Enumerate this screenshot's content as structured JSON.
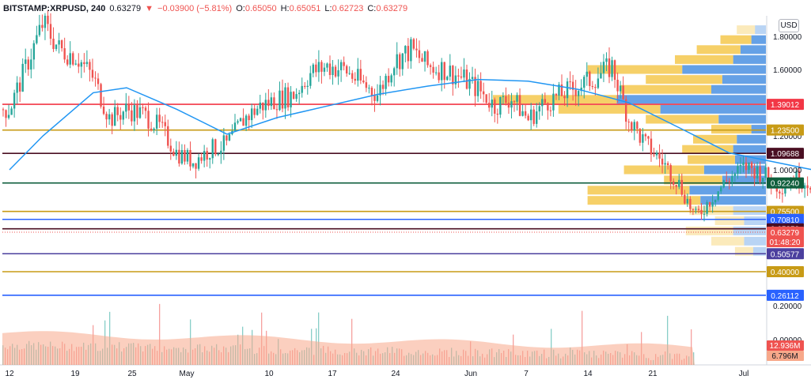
{
  "header": {
    "symbol": "BITSTAMP:XRPUSD, 240",
    "price": "0.63279",
    "change": "−0.03900 (−5.81%)",
    "o_label": "O:",
    "o_value": "0.65050",
    "h_label": "H:",
    "h_value": "0.65051",
    "l_label": "L:",
    "l_value": "0.62723",
    "c_label": "C:",
    "c_value": "0.63279"
  },
  "currency_button": "USD",
  "chart_data": {
    "type": "candlestick",
    "title": "",
    "x_tick_labels": [
      "12",
      "19",
      "25",
      "May",
      "10",
      "17",
      "24",
      "Jun",
      "7",
      "14",
      "21",
      "Jul"
    ],
    "y_tick_labels": [
      "1.80000",
      "1.60000",
      "1.20000",
      "1.00000",
      "0.20000",
      "0.00000"
    ],
    "y_ticks": [
      1.8,
      1.6,
      1.2,
      1.0,
      0.2,
      0.0
    ],
    "ylim": [
      0.0,
      1.9
    ],
    "price_levels": [
      {
        "label": "1.39012",
        "value": 1.39012,
        "color": "#f23645"
      },
      {
        "label": "1.23500",
        "value": 1.235,
        "color": "#c89b16"
      },
      {
        "label": "1.09688",
        "value": 1.09688,
        "color": "#4a0f22"
      },
      {
        "label": "0.92240",
        "value": 0.9224,
        "color": "#0f5e3c"
      },
      {
        "label": "0.75500",
        "value": 0.755,
        "color": "#c89b16"
      },
      {
        "label": "0.70810",
        "value": 0.7081,
        "color": "#2962ff"
      },
      {
        "label": "0.65258",
        "value": 0.65258,
        "color": "#4a0f22"
      },
      {
        "label": "0.50577",
        "value": 0.50577,
        "color": "#4b3f9e"
      },
      {
        "label": "0.40000",
        "value": 0.4,
        "color": "#c89b16"
      },
      {
        "label": "0.26112",
        "value": 0.26112,
        "color": "#2962ff"
      }
    ],
    "current_price": {
      "label": "0.63279",
      "countdown": "01:48:20",
      "value": 0.63279,
      "color": "#ef5350"
    },
    "volume_labels": [
      {
        "label": "12.936M",
        "color": "#ef5350"
      },
      {
        "label": "6.796M",
        "color": "#f7a88a"
      }
    ],
    "price_path": [
      {
        "date": "Apr 12",
        "value": 1.36
      },
      {
        "date": "Apr 13",
        "value": 1.62
      },
      {
        "date": "Apr 14",
        "value": 1.88
      },
      {
        "date": "Apr 15",
        "value": 1.72
      },
      {
        "date": "Apr 16",
        "value": 1.68
      },
      {
        "date": "Apr 17",
        "value": 1.55
      },
      {
        "date": "Apr 18",
        "value": 1.3
      },
      {
        "date": "Apr 19",
        "value": 1.36
      },
      {
        "date": "Apr 20",
        "value": 1.33
      },
      {
        "date": "Apr 21",
        "value": 1.25
      },
      {
        "date": "Apr 22",
        "value": 1.1
      },
      {
        "date": "Apr 23",
        "value": 1.05
      },
      {
        "date": "Apr 24",
        "value": 1.12
      },
      {
        "date": "Apr 25",
        "value": 1.15
      },
      {
        "date": "Apr 26",
        "value": 1.3
      },
      {
        "date": "Apr 27",
        "value": 1.38
      },
      {
        "date": "Apr 28",
        "value": 1.42
      },
      {
        "date": "Apr 29",
        "value": 1.45
      },
      {
        "date": "Apr 30",
        "value": 1.58
      },
      {
        "date": "May 1",
        "value": 1.62
      },
      {
        "date": "May 2",
        "value": 1.6
      },
      {
        "date": "May 3",
        "value": 1.52
      },
      {
        "date": "May 4",
        "value": 1.45
      },
      {
        "date": "May 5",
        "value": 1.65
      },
      {
        "date": "May 6",
        "value": 1.72
      },
      {
        "date": "May 7",
        "value": 1.62
      },
      {
        "date": "May 8",
        "value": 1.6
      },
      {
        "date": "May 9",
        "value": 1.55
      },
      {
        "date": "May 10",
        "value": 1.48
      },
      {
        "date": "May 11",
        "value": 1.38
      },
      {
        "date": "May 12",
        "value": 1.43
      },
      {
        "date": "May 13",
        "value": 1.3
      },
      {
        "date": "May 14",
        "value": 1.4
      },
      {
        "date": "May 15",
        "value": 1.45
      },
      {
        "date": "May 16",
        "value": 1.5
      },
      {
        "date": "May 17",
        "value": 1.55
      },
      {
        "date": "May 18",
        "value": 1.62
      },
      {
        "date": "May 19",
        "value": 1.3
      },
      {
        "date": "May 20",
        "value": 1.15
      },
      {
        "date": "May 21",
        "value": 1.05
      },
      {
        "date": "May 22",
        "value": 0.92
      },
      {
        "date": "May 23",
        "value": 0.72
      },
      {
        "date": "May 24",
        "value": 0.84
      },
      {
        "date": "May 25",
        "value": 0.95
      },
      {
        "date": "May 26",
        "value": 1.02
      },
      {
        "date": "May 27",
        "value": 0.98
      },
      {
        "date": "May 28",
        "value": 0.9
      },
      {
        "date": "May 29",
        "value": 0.95
      },
      {
        "date": "May 30",
        "value": 0.92
      },
      {
        "date": "May 31",
        "value": 0.98
      },
      {
        "date": "Jun 1",
        "value": 1.02
      },
      {
        "date": "Jun 2",
        "value": 1.04
      },
      {
        "date": "Jun 3",
        "value": 1.02
      },
      {
        "date": "Jun 4",
        "value": 0.96
      },
      {
        "date": "Jun 5",
        "value": 0.94
      },
      {
        "date": "Jun 6",
        "value": 0.93
      },
      {
        "date": "Jun 7",
        "value": 0.91
      },
      {
        "date": "Jun 8",
        "value": 0.85
      },
      {
        "date": "Jun 9",
        "value": 0.9
      },
      {
        "date": "Jun 10",
        "value": 0.88
      },
      {
        "date": "Jun 11",
        "value": 0.86
      },
      {
        "date": "Jun 12",
        "value": 0.87
      },
      {
        "date": "Jun 13",
        "value": 0.89
      },
      {
        "date": "Jun 14",
        "value": 0.9
      },
      {
        "date": "Jun 15",
        "value": 0.87
      },
      {
        "date": "Jun 16",
        "value": 0.84
      },
      {
        "date": "Jun 17",
        "value": 0.83
      },
      {
        "date": "Jun 18",
        "value": 0.78
      },
      {
        "date": "Jun 19",
        "value": 0.74
      },
      {
        "date": "Jun 20",
        "value": 0.67
      },
      {
        "date": "Jun 21",
        "value": 0.58
      },
      {
        "date": "Jun 22",
        "value": 0.52
      },
      {
        "date": "Jun 23",
        "value": 0.6
      },
      {
        "date": "Jun 24",
        "value": 0.64
      },
      {
        "date": "Jun 25",
        "value": 0.63279
      }
    ],
    "moving_average": [
      {
        "date": "Apr 12",
        "value": 1.0
      },
      {
        "date": "Apr 14",
        "value": 1.2
      },
      {
        "date": "Apr 17",
        "value": 1.46
      },
      {
        "date": "Apr 19",
        "value": 1.49
      },
      {
        "date": "Apr 22",
        "value": 1.36
      },
      {
        "date": "Apr 25",
        "value": 1.21
      },
      {
        "date": "Apr 28",
        "value": 1.31
      },
      {
        "date": "May 1",
        "value": 1.38
      },
      {
        "date": "May 4",
        "value": 1.45
      },
      {
        "date": "May 7",
        "value": 1.5
      },
      {
        "date": "May 10",
        "value": 1.54
      },
      {
        "date": "May 13",
        "value": 1.53
      },
      {
        "date": "May 16",
        "value": 1.48
      },
      {
        "date": "May 19",
        "value": 1.4
      },
      {
        "date": "May 22",
        "value": 1.25
      },
      {
        "date": "May 25",
        "value": 1.1
      },
      {
        "date": "May 28",
        "value": 1.04
      },
      {
        "date": "May 31",
        "value": 0.98
      },
      {
        "date": "Jun 3",
        "value": 0.97
      },
      {
        "date": "Jun 6",
        "value": 0.94
      },
      {
        "date": "Jun 9",
        "value": 0.92
      },
      {
        "date": "Jun 12",
        "value": 0.9
      },
      {
        "date": "Jun 15",
        "value": 0.88
      },
      {
        "date": "Jun 18",
        "value": 0.85
      },
      {
        "date": "Jun 21",
        "value": 0.78
      },
      {
        "date": "Jun 24",
        "value": 0.7
      }
    ],
    "volume_profile": [
      {
        "price": 1.84,
        "buy": 0.1,
        "sell": 0.06
      },
      {
        "price": 1.78,
        "buy": 0.17,
        "sell": 0.08
      },
      {
        "price": 1.72,
        "buy": 0.24,
        "sell": 0.14
      },
      {
        "price": 1.66,
        "buy": 0.32,
        "sell": 0.18
      },
      {
        "price": 1.6,
        "buy": 0.52,
        "sell": 0.46
      },
      {
        "price": 1.54,
        "buy": 0.42,
        "sell": 0.24
      },
      {
        "price": 1.48,
        "buy": 0.5,
        "sell": 0.3
      },
      {
        "price": 1.42,
        "buy": 0.68,
        "sell": 0.82
      },
      {
        "price": 1.36,
        "buy": 0.56,
        "sell": 0.58
      },
      {
        "price": 1.3,
        "buy": 0.4,
        "sell": 0.26
      },
      {
        "price": 1.24,
        "buy": 0.22,
        "sell": 0.08
      },
      {
        "price": 1.18,
        "buy": 0.24,
        "sell": 0.16
      },
      {
        "price": 1.12,
        "buy": 0.28,
        "sell": 0.18
      },
      {
        "price": 1.06,
        "buy": 0.26,
        "sell": 0.17
      },
      {
        "price": 1.0,
        "buy": 0.44,
        "sell": 0.34
      },
      {
        "price": 0.94,
        "buy": 0.32,
        "sell": 0.24
      },
      {
        "price": 0.88,
        "buy": 0.56,
        "sell": 0.42
      },
      {
        "price": 0.82,
        "buy": 0.62,
        "sell": 0.36
      },
      {
        "price": 0.76,
        "buy": 0.24,
        "sell": 0.18
      },
      {
        "price": 0.7,
        "buy": 0.16,
        "sell": 0.12
      },
      {
        "price": 0.64,
        "buy": 0.26,
        "sell": 0.18
      },
      {
        "price": 0.58,
        "buy": 0.18,
        "sell": 0.12
      },
      {
        "price": 0.52,
        "buy": 0.1,
        "sell": 0.07
      }
    ]
  },
  "colors": {
    "up": "#26a69a",
    "down": "#ef5350",
    "moving_average": "#2196f3",
    "volume_area": "#f7a88a",
    "profile_buy": "#f4c84d",
    "profile_sell": "#4a90e2"
  }
}
